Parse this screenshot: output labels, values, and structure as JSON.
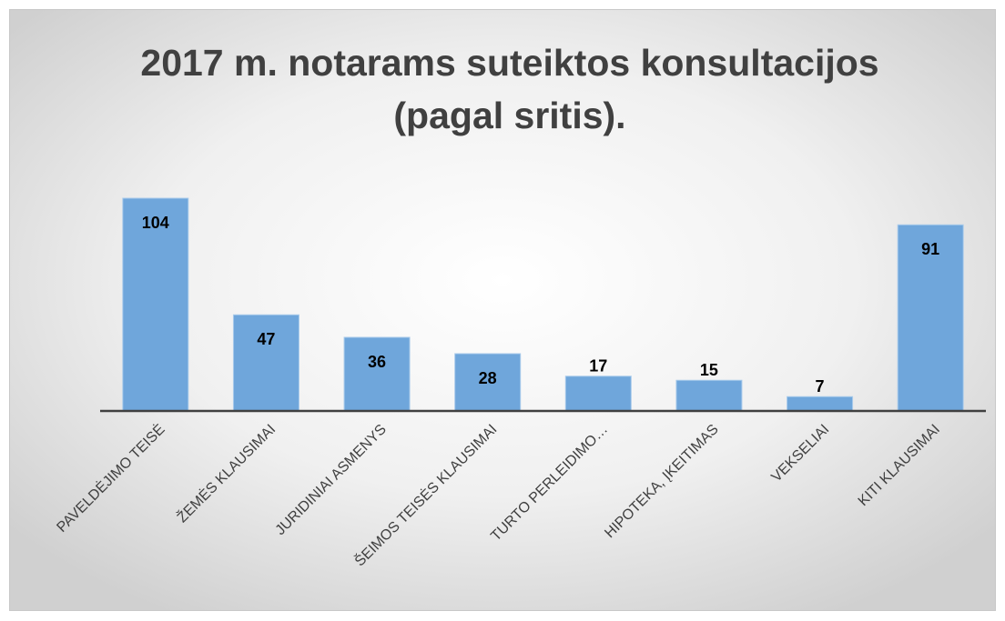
{
  "chart_data": {
    "type": "bar",
    "title": [
      "2017 m. notarams suteiktos konsultacijos",
      "(pagal sritis)."
    ],
    "categories": [
      "PAVELDĖJIMO TEISĖ",
      "ŽEMĖS KLAUSIMAI",
      "JURIDINIAI ASMENYS",
      "ŠEIMOS TEISĖS KLAUSIMAI",
      "TURTO PERLEIDIMO…",
      "HIPOTEKA, ĮKEITIMAS",
      "VEKSELIAI",
      "KITI KLAUSIMAI"
    ],
    "values": [
      104,
      47,
      36,
      28,
      17,
      15,
      7,
      91
    ],
    "color": "#6fa6db"
  }
}
